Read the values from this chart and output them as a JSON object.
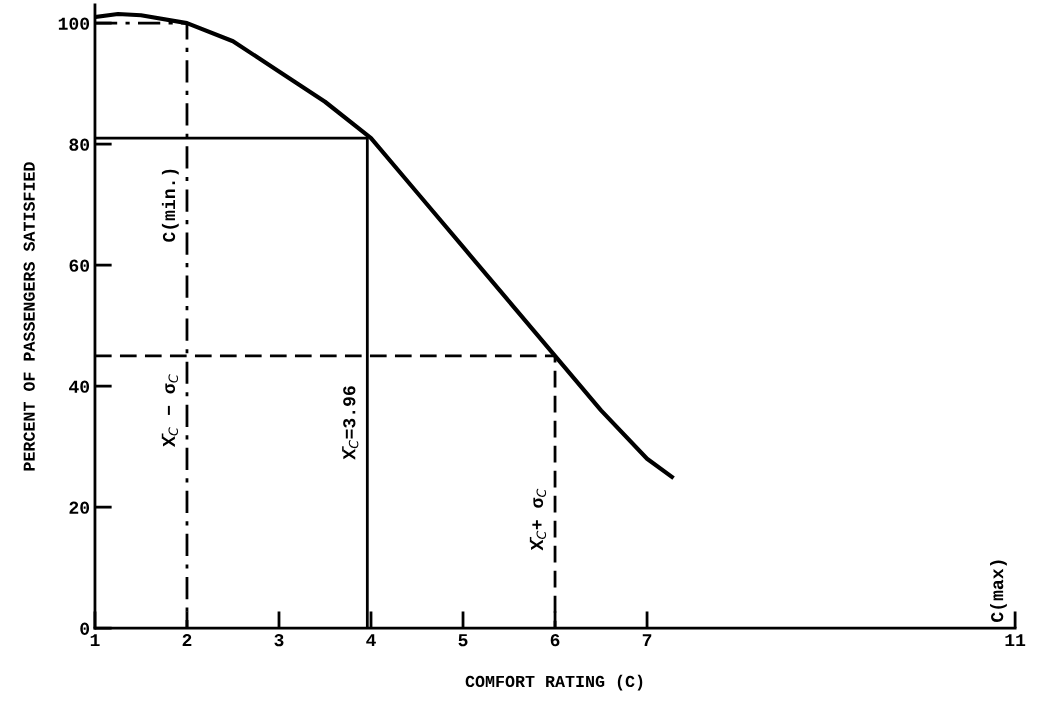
{
  "chart_data": {
    "type": "line",
    "xlabel": "COMFORT RATING (C)",
    "ylabel": "PERCENT OF PASSENGERS SATISFIED",
    "xlim": [
      1,
      11
    ],
    "xticks": [
      1,
      2,
      3,
      4,
      5,
      6,
      7,
      11
    ],
    "ylim": [
      0,
      103
    ],
    "yticks": [
      0,
      20,
      40,
      60,
      80,
      100
    ],
    "grid": false,
    "legend": false,
    "marker": "none",
    "series": [
      {
        "x": [
          1.0,
          1.25,
          1.5,
          2.0,
          2.5,
          3.0,
          3.5,
          4.0,
          4.5,
          5.0,
          5.5,
          6.0,
          6.5,
          7.0,
          7.27
        ],
        "values": [
          101,
          101.5,
          101.3,
          100,
          97,
          92,
          87,
          81,
          72,
          63,
          54,
          45,
          36,
          28,
          25
        ],
        "color": "#000000",
        "line_style": "solid"
      },
      {
        "x": [
          1,
          2,
          2
        ],
        "values": [
          100,
          100,
          0
        ],
        "color": "#000000",
        "line_style": "dashdot"
      },
      {
        "x": [
          1,
          3.96,
          3.96
        ],
        "values": [
          81,
          81,
          0
        ],
        "color": "#000000",
        "line_style": "solid"
      },
      {
        "x": [
          1,
          6,
          6
        ],
        "values": [
          45,
          45,
          0
        ],
        "color": "#000000",
        "line_style": "dashed"
      }
    ],
    "annotations": [
      {
        "text": "C(min.)",
        "x": 2,
        "y": 70
      },
      {
        "text": "X̄$_{C}$ − σ$_{C}$",
        "x": 2,
        "y": 36
      },
      {
        "text": "X̄$_{C}$=3.96",
        "x": 3.96,
        "y": 34
      },
      {
        "text": "X̄$_{C}$+ σ$_{C}$",
        "x": 6,
        "y": 18
      },
      "C(max)"
    ]
  }
}
